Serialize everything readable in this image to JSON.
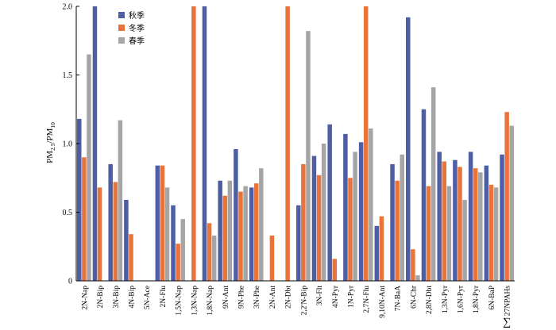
{
  "chart_data": {
    "type": "bar",
    "ylabel": "PM2.5/PM10",
    "ylabel_main": "PM",
    "ylabel_sub1": "2.5",
    "ylabel_sep": "/PM",
    "ylabel_sub2": "10",
    "ylim": [
      0,
      2.0
    ],
    "yticks": [
      "0",
      "0.5",
      "1.0",
      "1.5",
      "2.0"
    ],
    "legend_position": "top-left",
    "categories": [
      "2N-Nap",
      "2N-Bip",
      "3N-Bip",
      "4N-Bip",
      "5N-Ace",
      "2N-Flu",
      "1,5N-Nap",
      "1,3N-Nap",
      "1,8N-Nap",
      "9N-Ant",
      "9N-Phe",
      "3N-Phe",
      "2N-Ant",
      "2N-Dbt",
      "2,2'N-Bip",
      "3N-Flt",
      "4N-Pyr",
      "1N-Pyr",
      "2,7N-Flu",
      "9,10N-Ant",
      "7N-BaA",
      "6N-Chr",
      "2,8N-Dbt",
      "1,3N-Pyr",
      "1,6N-Pyr",
      "1,8N-Pyr",
      "6N-BaP",
      "27NPAHs"
    ],
    "last_category_prefix": "∑",
    "series": [
      {
        "name": "秋季",
        "color": "#4e5ea4",
        "values": [
          1.18,
          2.0,
          0.85,
          0.59,
          0,
          0.84,
          0.55,
          0,
          2.0,
          0.73,
          0.96,
          0.68,
          0,
          0,
          0.55,
          0.91,
          1.14,
          1.07,
          1.01,
          0.4,
          0.85,
          1.92,
          1.25,
          0.94,
          0.88,
          0.94,
          0.84,
          0.92
        ]
      },
      {
        "name": "冬季",
        "color": "#e8743b",
        "values": [
          0.9,
          0.68,
          0.72,
          0.34,
          0,
          0.84,
          0.27,
          2.0,
          0.42,
          0.62,
          0.65,
          0.71,
          0.33,
          2.0,
          0.85,
          0.77,
          0.16,
          0.75,
          2.0,
          0.47,
          0.73,
          0.23,
          0.69,
          0.87,
          0.83,
          0.82,
          0.7,
          1.23
        ]
      },
      {
        "name": "春季",
        "color": "#a5a5a5",
        "values": [
          1.65,
          0,
          1.17,
          0,
          0,
          0.68,
          0.45,
          0,
          0.33,
          0.73,
          0.69,
          0.82,
          0,
          0,
          1.82,
          1.0,
          0,
          0.94,
          1.11,
          0,
          0.92,
          0.04,
          1.41,
          0.69,
          0.59,
          0.79,
          0.68,
          1.13
        ]
      }
    ]
  }
}
